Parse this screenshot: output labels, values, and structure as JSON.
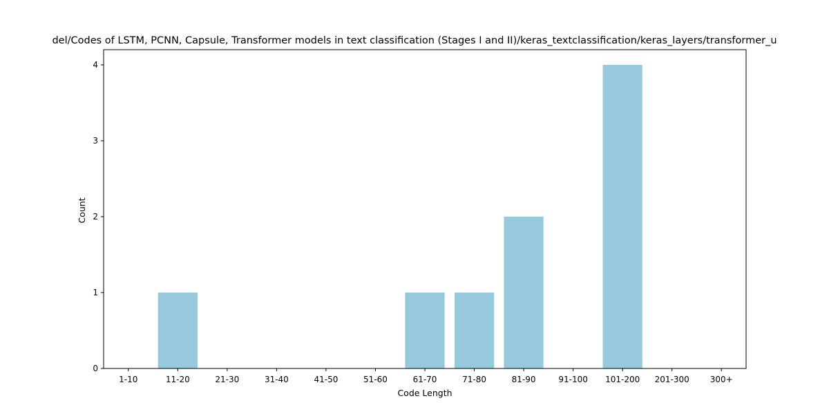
{
  "chart_data": {
    "type": "bar",
    "title": "del/Codes of LSTM, PCNN, Capsule, Transformer models in text classification (Stages I and II)/keras_textclassification/keras_layers/transformer_u",
    "xlabel": "Code Length",
    "ylabel": "Count",
    "categories": [
      "1-10",
      "11-20",
      "21-30",
      "31-40",
      "41-50",
      "51-60",
      "61-70",
      "71-80",
      "81-90",
      "91-100",
      "101-200",
      "201-300",
      "300+"
    ],
    "values": [
      0,
      1,
      0,
      0,
      0,
      0,
      1,
      1,
      2,
      0,
      4,
      0,
      0
    ],
    "ylim": [
      0,
      4.2
    ],
    "yticks": [
      0,
      1,
      2,
      3,
      4
    ],
    "bar_color": "#96c9dc",
    "grid": false,
    "legend": "none"
  }
}
